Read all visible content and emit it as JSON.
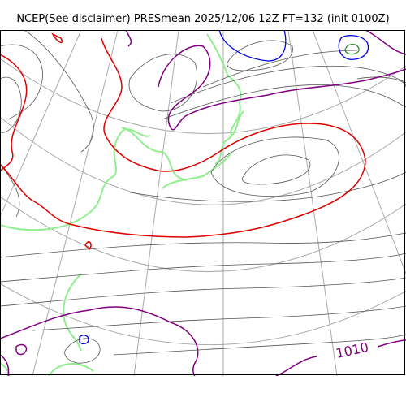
{
  "header": {
    "title": "NCEP(See disclaimer) PRESmean 2025/12/06 12Z FT=132 (init 0100Z)"
  },
  "map": {
    "contour_label": "1010",
    "colors": {
      "graticule": "#aaaaaa",
      "isobar": "#555555",
      "isobar_1010": "#800080",
      "isobar_1000": "#e00000",
      "isobar_low": "#0000e0",
      "land": "#90ee90",
      "frame": "#000000"
    }
  }
}
